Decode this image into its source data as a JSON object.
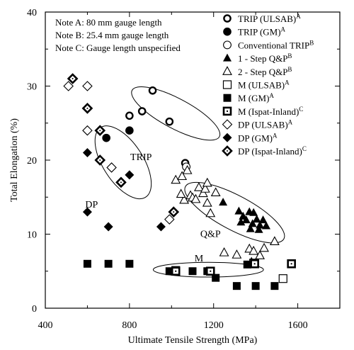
{
  "chart_data": {
    "type": "scatter",
    "xlabel": "Ultimate Tensile Strength (MPa)",
    "ylabel": "Total Elongation (%)",
    "xlim": [
      400,
      1800
    ],
    "ylim": [
      0,
      40
    ],
    "x_ticks": [
      400,
      800,
      1200,
      1600
    ],
    "y_ticks": [
      0,
      10,
      20,
      30,
      40
    ],
    "notes": [
      "Note A: 80 mm gauge length",
      "Note B: 25.4 mm gauge length",
      "Note C: Gauge length unspecified"
    ],
    "legend_placement": "top-right",
    "region_labels": [
      {
        "text": "TRIP",
        "x": 855,
        "y": 20
      },
      {
        "text": "DP",
        "x": 620,
        "y": 13.6
      },
      {
        "text": "Q&P",
        "x": 1185,
        "y": 9.6
      },
      {
        "text": "M",
        "x": 1130,
        "y": 6.3
      }
    ],
    "ellipses": [
      {
        "name": "TRIP",
        "cx": 1020,
        "cy": 26.3,
        "rx": 235,
        "ry": 71,
        "rotation": 28
      },
      {
        "name": "DP",
        "cx": 770,
        "cy": 19.7,
        "rx": 95,
        "ry": 197,
        "rotation": -33
      },
      {
        "name": "Q&P",
        "cx": 1300,
        "cy": 12.9,
        "rx": 265,
        "ry": 82,
        "rotation": 28
      },
      {
        "name": "M",
        "cx": 1175,
        "cy": 5.2,
        "rx": 262,
        "ry": 35,
        "rotation": 0
      }
    ],
    "series": [
      {
        "name": "TRIP (ULSAB)",
        "sup": "A",
        "marker": "bold-open-circle",
        "points": [
          [
            800,
            26
          ],
          [
            860,
            26.6
          ],
          [
            910,
            29.4
          ],
          [
            990,
            25.2
          ],
          [
            1065,
            19.6
          ]
        ]
      },
      {
        "name": "TRIP (GM)",
        "sup": "A",
        "marker": "filled-circle",
        "points": [
          [
            690,
            23
          ],
          [
            800,
            24
          ]
        ]
      },
      {
        "name": "Conventional TRIP",
        "sup": "B",
        "marker": "open-circle",
        "points": [
          [
            1070,
            19.1
          ]
        ]
      },
      {
        "name": "1 - Step Q&P",
        "sup": "B",
        "marker": "filled-triangle",
        "points": [
          [
            1245,
            14.3
          ],
          [
            1320,
            13.1
          ],
          [
            1340,
            12.4
          ],
          [
            1355,
            11.9
          ],
          [
            1370,
            13.0
          ],
          [
            1385,
            11.4
          ],
          [
            1390,
            12.9
          ],
          [
            1405,
            12.0
          ],
          [
            1420,
            11.2
          ],
          [
            1435,
            11.9
          ],
          [
            1450,
            11.1
          ],
          [
            1330,
            11.6
          ],
          [
            1375,
            10.7
          ],
          [
            1415,
            10.6
          ]
        ]
      },
      {
        "name": "2 - Step Q&P",
        "sup": "B",
        "marker": "open-triangle",
        "points": [
          [
            1020,
            17.3
          ],
          [
            1050,
            17.8
          ],
          [
            1075,
            18.6
          ],
          [
            1090,
            15.2
          ],
          [
            1100,
            14.9
          ],
          [
            1115,
            14.7
          ],
          [
            1130,
            16.3
          ],
          [
            1150,
            15.5
          ],
          [
            1160,
            16.1
          ],
          [
            1170,
            16.9
          ],
          [
            1170,
            14.2
          ],
          [
            1185,
            12.8
          ],
          [
            1060,
            14.6
          ],
          [
            1045,
            15.4
          ],
          [
            1250,
            7.5
          ],
          [
            1310,
            7.2
          ],
          [
            1370,
            8.0
          ],
          [
            1390,
            7.7
          ],
          [
            1420,
            7.1
          ],
          [
            1440,
            8.1
          ],
          [
            1490,
            9.0
          ],
          [
            1380,
            6.2
          ],
          [
            1210,
            15.6
          ]
        ]
      },
      {
        "name": "M (ULSAB)",
        "sup": "A",
        "marker": "open-square",
        "points": [
          [
            1020,
            5.1
          ],
          [
            1185,
            5.0
          ],
          [
            1530,
            4.0
          ],
          [
            1390,
            6.1
          ]
        ]
      },
      {
        "name": "M (GM)",
        "sup": "A",
        "marker": "filled-square",
        "points": [
          [
            600,
            6.0
          ],
          [
            700,
            6.0
          ],
          [
            800,
            6.0
          ],
          [
            990,
            5.0
          ],
          [
            1100,
            5.0
          ],
          [
            1170,
            5.0
          ],
          [
            1210,
            4.1
          ],
          [
            1310,
            3.0
          ],
          [
            1400,
            3.0
          ],
          [
            1490,
            3.0
          ],
          [
            1360,
            5.9
          ]
        ]
      },
      {
        "name": "M (Ispat-Inland)",
        "sup": "C",
        "marker": "dotted-square",
        "points": [
          [
            1020,
            5.0
          ],
          [
            1185,
            5.0
          ],
          [
            1570,
            6.0
          ],
          [
            1395,
            6.0
          ]
        ]
      },
      {
        "name": "DP (ULSAB)",
        "sup": "A",
        "marker": "open-diamond",
        "points": [
          [
            510,
            30
          ],
          [
            600,
            30
          ],
          [
            600,
            24
          ],
          [
            715,
            19
          ],
          [
            990,
            12
          ],
          [
            660,
            24
          ]
        ]
      },
      {
        "name": "DP (GM)",
        "sup": "A",
        "marker": "filled-diamond",
        "points": [
          [
            600,
            21
          ],
          [
            800,
            18
          ],
          [
            600,
            13
          ],
          [
            700,
            11
          ],
          [
            950,
            11
          ]
        ]
      },
      {
        "name": "DP (Ispat-Inland)",
        "sup": "C",
        "marker": "dotted-diamond",
        "points": [
          [
            530,
            31
          ],
          [
            600,
            27
          ],
          [
            660,
            24
          ],
          [
            660,
            20
          ],
          [
            760,
            17
          ],
          [
            1010,
            13
          ]
        ]
      }
    ]
  }
}
